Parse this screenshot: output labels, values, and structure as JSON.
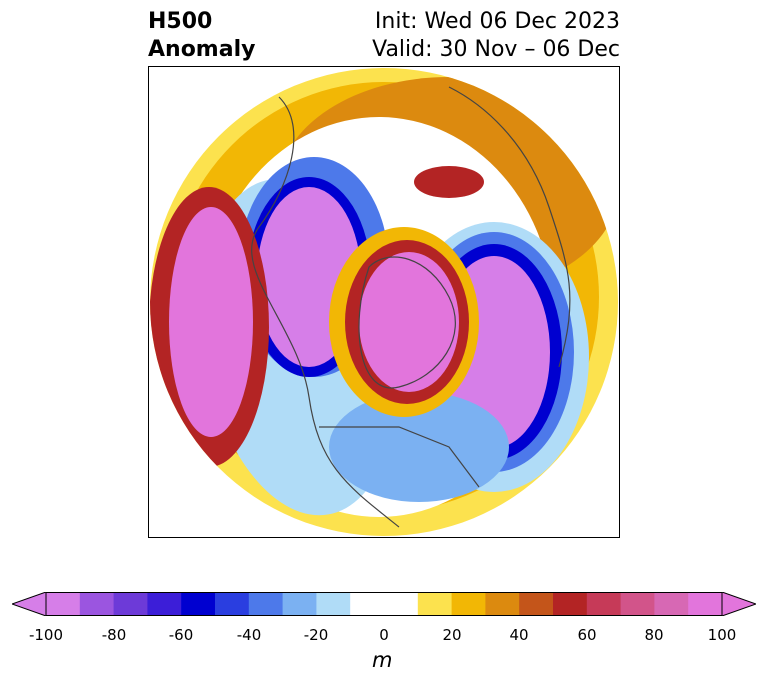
{
  "title": {
    "left_line1": "H500",
    "left_line2": "Anomaly",
    "right_line1": "Init: Wed 06 Dec 2023",
    "right_line2": "Valid: 30 Nov – 06 Dec"
  },
  "colorbar": {
    "unit": "m",
    "min": -100,
    "max": 100,
    "step": 10,
    "extend": "both",
    "colors": [
      "#d67ee8",
      "#9b55e0",
      "#6d3ad8",
      "#3c1ed8",
      "#0000d0",
      "#2a3ee0",
      "#4d79ea",
      "#7bb1f2",
      "#b0dcf7",
      "#ffffff",
      "#ffffff",
      "#fce24e",
      "#f2b705",
      "#dc8a0f",
      "#c4551a",
      "#b32424",
      "#c63a58",
      "#d2548a",
      "#d768b4",
      "#e275dc"
    ],
    "ticks": [
      "-100",
      "-80",
      "-60",
      "-40",
      "-20",
      "0",
      "20",
      "40",
      "60",
      "80",
      "100"
    ]
  },
  "map": {
    "projection": "north-polar-stereographic",
    "anomaly_centers": [
      {
        "region": "northeast-pacific",
        "sign": "positive",
        "color": "#e275dc"
      },
      {
        "region": "western-north-america",
        "sign": "negative",
        "color": "#d67ee8"
      },
      {
        "region": "arctic-greenland",
        "sign": "positive",
        "color": "#e275dc"
      },
      {
        "region": "northern-europe",
        "sign": "negative",
        "color": "#d67ee8"
      },
      {
        "region": "north-atlantic",
        "sign": "negative",
        "color": "#d67ee8"
      },
      {
        "region": "northern-asia",
        "sign": "positive",
        "color": "#b32424"
      }
    ]
  }
}
